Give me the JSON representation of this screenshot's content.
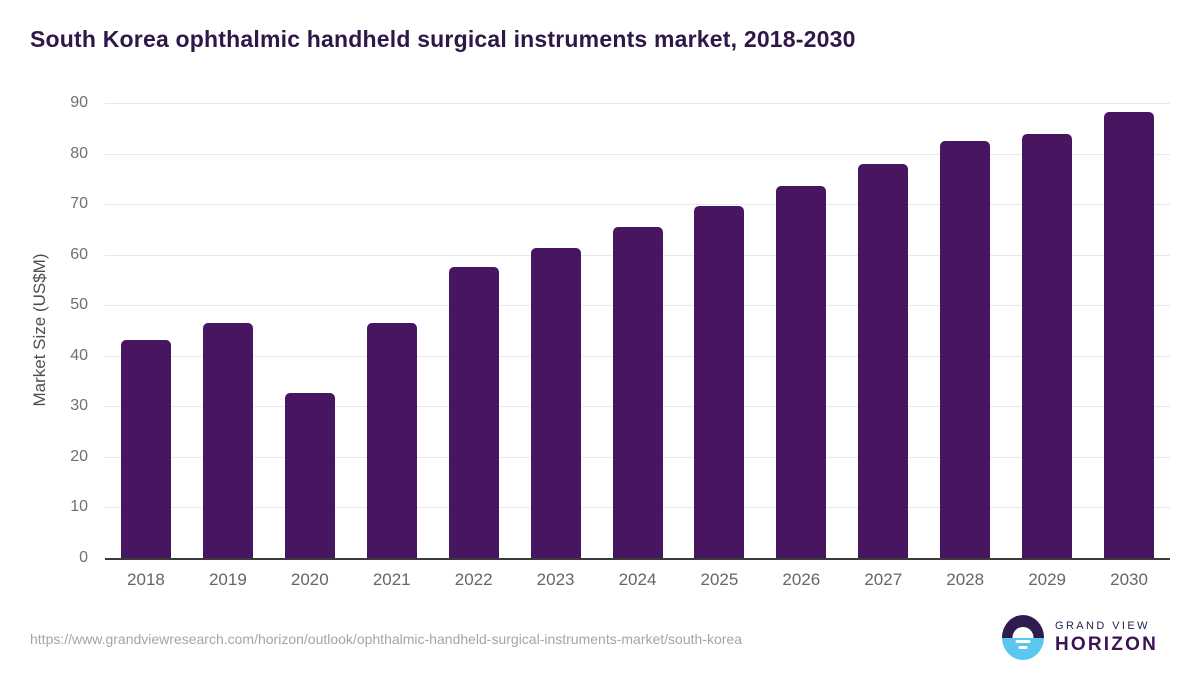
{
  "page": {
    "background": "#ffffff"
  },
  "chart_data": {
    "type": "bar",
    "title": "South Korea ophthalmic handheld surgical instruments market, 2018-2030",
    "title_color": "#2f1747",
    "categories": [
      "2018",
      "2019",
      "2020",
      "2021",
      "2022",
      "2023",
      "2024",
      "2025",
      "2026",
      "2027",
      "2028",
      "2029",
      "2030"
    ],
    "values": [
      43.2,
      46.5,
      32.6,
      46.5,
      57.5,
      61.3,
      65.4,
      69.6,
      73.6,
      78.0,
      82.4,
      83.8,
      88.3
    ],
    "xlabel": "",
    "ylabel": "Market Size (US$M)",
    "ylim": [
      0,
      90
    ],
    "yticks": [
      0,
      10,
      20,
      30,
      40,
      50,
      60,
      70,
      80,
      90
    ],
    "grid": true,
    "legend": "none",
    "bar_color": "#481660",
    "gridline_color": "#e9e9e9",
    "axis_line_color": "#3b3b3b",
    "tick_label_color": "#6f6f6f"
  },
  "footer": {
    "source_url": "https://www.grandviewresearch.com/horizon/outlook/ophthalmic-handheld-surgical-instruments-market/south-korea",
    "logo": {
      "top": "GRAND VIEW",
      "bottom": "HORIZON",
      "mark_top_color": "#2f1c4e",
      "mark_bottom_color": "#5bc6f0"
    }
  }
}
